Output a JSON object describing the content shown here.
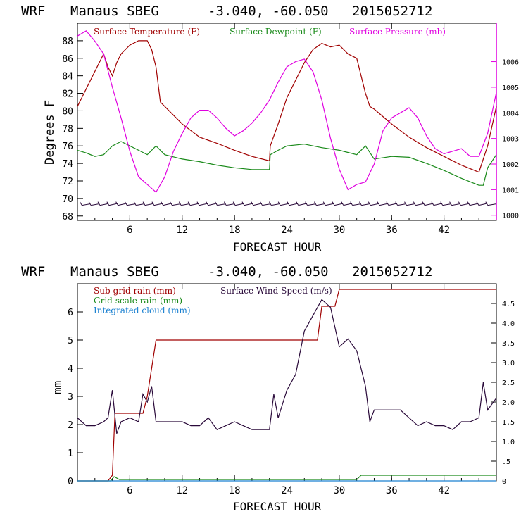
{
  "charts": [
    {
      "id": "top",
      "header": {
        "model": "WRF",
        "location": "Manaus SBEG",
        "coords": "-3.040, -60.050",
        "date": "2015052712"
      },
      "xlabel": "FORECAST HOUR",
      "ylabel_left": "Degrees F",
      "legend": [
        "Surface Temperature (F)",
        "Surface Dewpoint (F)",
        "Surface Pressure (mb)"
      ],
      "x_ticks": [
        "6",
        "12",
        "18",
        "24",
        "30",
        "36",
        "42"
      ],
      "y_ticks_left": [
        "68",
        "70",
        "72",
        "74",
        "76",
        "78",
        "80",
        "82",
        "84",
        "86",
        "88"
      ],
      "y_ticks_right": [
        "1000",
        "1001",
        "1002",
        "1003",
        "1004",
        "1005",
        "1006"
      ]
    },
    {
      "id": "bottom",
      "header": {
        "model": "WRF",
        "location": "Manaus SBEG",
        "coords": "-3.040, -60.050",
        "date": "2015052712"
      },
      "xlabel": "FORECAST HOUR",
      "ylabel_left": "mm",
      "legend": [
        "Sub-grid rain (mm)",
        "Surface Wind Speed (m/s)",
        "Grid-scale rain (mm)",
        "Integrated cloud (mm)"
      ],
      "x_ticks": [
        "6",
        "12",
        "18",
        "24",
        "30",
        "36",
        "42"
      ],
      "y_ticks_left": [
        "0",
        "1",
        "2",
        "3",
        "4",
        "5",
        "6"
      ],
      "y_ticks_right": [
        "0",
        ".5",
        "1.0",
        "1.5",
        "2.0",
        "2.5",
        "3.0",
        "3.5",
        "4.0",
        "4.5"
      ]
    }
  ],
  "chart_data": [
    {
      "type": "line",
      "xlim": [
        0,
        48
      ],
      "ylim_left": [
        67.5,
        90
      ],
      "ylim_right": [
        999.8,
        1007.5
      ],
      "colors": {
        "temperature": "#a00000",
        "dewpoint": "#1a8a1a",
        "pressure": "#e000e0",
        "wind_barbs": "#2a0a3a",
        "axes": "#000000"
      },
      "series": [
        {
          "name": "Surface Temperature (F)",
          "axis": "left",
          "x": [
            0,
            1,
            2,
            3,
            3.5,
            4,
            4.5,
            5,
            6,
            7,
            8,
            8.5,
            9,
            9.5,
            10,
            12,
            14,
            16,
            18,
            20,
            22,
            22.1,
            23,
            24,
            25,
            26,
            27,
            28,
            29,
            30,
            31,
            32,
            33,
            33.5,
            34,
            36,
            38,
            40,
            42,
            44,
            46,
            47,
            48
          ],
          "y": [
            80.5,
            82.5,
            84.5,
            86.5,
            85,
            84,
            85.5,
            86.5,
            87.5,
            88,
            88,
            87,
            85,
            81,
            80.5,
            78.5,
            77,
            76.3,
            75.5,
            74.8,
            74.3,
            76,
            78.5,
            81.5,
            83.5,
            85.5,
            87,
            87.7,
            87.3,
            87.5,
            86.5,
            86,
            82,
            80.5,
            80.2,
            78.5,
            77,
            75.8,
            74.8,
            73.8,
            73,
            76,
            80.5
          ]
        },
        {
          "name": "Surface Dewpoint (F)",
          "axis": "left",
          "x": [
            0,
            1,
            2,
            3,
            4,
            5,
            6,
            7,
            8,
            9,
            10,
            12,
            14,
            16,
            18,
            20,
            22,
            22.1,
            23,
            24,
            26,
            28,
            30,
            32,
            33,
            34,
            36,
            38,
            40,
            42,
            44,
            46,
            46.5,
            47,
            48
          ],
          "y": [
            75.5,
            75.2,
            74.8,
            75,
            76,
            76.5,
            76,
            75.5,
            75,
            76,
            75,
            74.5,
            74.2,
            73.8,
            73.5,
            73.3,
            73.3,
            75,
            75.5,
            76,
            76.2,
            75.8,
            75.5,
            75,
            76,
            74.5,
            74.8,
            74.7,
            74,
            73.2,
            72.3,
            71.5,
            71.5,
            73.5,
            75
          ]
        },
        {
          "name": "Surface Pressure (mb)",
          "axis": "right",
          "x": [
            0,
            1,
            2,
            3,
            4,
            5,
            6,
            7,
            8,
            9,
            10,
            11,
            12,
            13,
            14,
            15,
            16,
            17,
            18,
            19,
            20,
            21,
            22,
            23,
            24,
            25,
            26,
            27,
            28,
            29,
            30,
            31,
            32,
            33,
            34,
            35,
            36,
            37,
            38,
            39,
            40,
            41,
            42,
            43,
            44,
            45,
            46,
            47,
            48
          ],
          "y": [
            1007,
            1007.2,
            1006.8,
            1006.3,
            1005,
            1003.8,
            1002.5,
            1001.5,
            1001.2,
            1000.9,
            1001.5,
            1002.5,
            1003.2,
            1003.8,
            1004.1,
            1004.1,
            1003.8,
            1003.4,
            1003.1,
            1003.3,
            1003.6,
            1004,
            1004.5,
            1005.2,
            1005.8,
            1006,
            1006.1,
            1005.6,
            1004.5,
            1003,
            1001.8,
            1001,
            1001.2,
            1001.3,
            1002,
            1003.3,
            1003.8,
            1004,
            1004.2,
            1003.8,
            1003.1,
            1002.6,
            1002.4,
            1002.5,
            1002.6,
            1002.3,
            1002.3,
            1003.2,
            1004.8
          ]
        }
      ],
      "wind_barbs": {
        "x_start": 1,
        "x_end": 47.5,
        "count": 46,
        "level_y": 69.3
      }
    },
    {
      "type": "line",
      "xlim": [
        0,
        48
      ],
      "ylim_left": [
        0,
        7
      ],
      "ylim_right": [
        0,
        5.0
      ],
      "colors": {
        "subgrid": "#a00000",
        "wind": "#2a0a3a",
        "gridscale": "#1a8a1a",
        "cloud": "#1a80d0",
        "axes": "#000000"
      },
      "series": [
        {
          "name": "Sub-grid rain (mm)",
          "axis": "left",
          "x": [
            0,
            3.5,
            4,
            4.3,
            7.5,
            8,
            9,
            27.5,
            28,
            29.5,
            30,
            48
          ],
          "y": [
            0,
            0,
            0.2,
            2.4,
            2.4,
            3,
            5,
            5,
            6.2,
            6.2,
            6.8,
            6.8
          ]
        },
        {
          "name": "Surface Wind Speed (m/s)",
          "axis": "right",
          "x": [
            0,
            1,
            2,
            3,
            3.5,
            4,
            4.5,
            5,
            6,
            7,
            7.5,
            8,
            8.5,
            9,
            10,
            11,
            12,
            13,
            14,
            15,
            16,
            17,
            18,
            19,
            20,
            21,
            22,
            22.5,
            23,
            24,
            25,
            26,
            27,
            28,
            29,
            30,
            31,
            32,
            33,
            33.5,
            34,
            35,
            36,
            37,
            38,
            39,
            40,
            41,
            42,
            43,
            44,
            45,
            46,
            46.5,
            47,
            48
          ],
          "y": [
            1.6,
            1.4,
            1.4,
            1.5,
            1.6,
            2.3,
            1.2,
            1.5,
            1.6,
            1.5,
            2.2,
            2.0,
            2.4,
            1.5,
            1.5,
            1.5,
            1.5,
            1.4,
            1.4,
            1.6,
            1.3,
            1.4,
            1.5,
            1.4,
            1.3,
            1.3,
            1.3,
            2.2,
            1.6,
            2.3,
            2.7,
            3.8,
            4.2,
            4.6,
            4.4,
            3.4,
            3.6,
            3.3,
            2.4,
            1.5,
            1.8,
            1.8,
            1.8,
            1.8,
            1.6,
            1.4,
            1.5,
            1.4,
            1.4,
            1.3,
            1.5,
            1.5,
            1.6,
            2.5,
            1.8,
            2.1
          ]
        },
        {
          "name": "Grid-scale rain (mm)",
          "axis": "left",
          "x": [
            0,
            3.8,
            4.2,
            4.8,
            5,
            32,
            32.5,
            48
          ],
          "y": [
            0,
            0,
            0.15,
            0.05,
            0.05,
            0.05,
            0.2,
            0.2
          ]
        },
        {
          "name": "Integrated cloud (mm)",
          "axis": "left",
          "x": [
            0,
            48
          ],
          "y": [
            0,
            0
          ]
        }
      ]
    }
  ]
}
